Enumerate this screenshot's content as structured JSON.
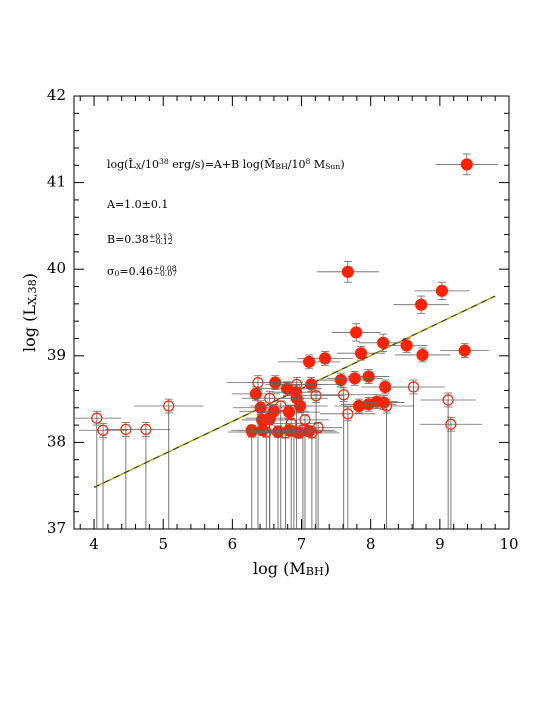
{
  "chart_data": {
    "type": "scatter",
    "xlabel": [
      {
        "text": "log (M",
        "shift": "none"
      },
      {
        "text": "BH",
        "shift": "sub"
      },
      {
        "text": ")",
        "shift": "none"
      }
    ],
    "ylabel": [
      {
        "text": "log (L",
        "shift": "none"
      },
      {
        "text": "X,38",
        "shift": "sub"
      },
      {
        "text": ")",
        "shift": "none"
      }
    ],
    "annotations": [
      [
        {
          "text": "log(L̂",
          "shift": "none"
        },
        {
          "text": "X",
          "shift": "sub"
        },
        {
          "text": "/10",
          "shift": "none"
        },
        {
          "text": "38",
          "shift": "sup"
        },
        {
          "text": " erg/s)=A+B log(M̂",
          "shift": "none"
        },
        {
          "text": "BH",
          "shift": "sub"
        },
        {
          "text": "/10",
          "shift": "none"
        },
        {
          "text": "8",
          "shift": "sup"
        },
        {
          "text": " M",
          "shift": "none"
        },
        {
          "text": "Sun",
          "shift": "sub"
        },
        {
          "text": ")",
          "shift": "none"
        }
      ],
      [
        {
          "text": "A=1.0±0.1",
          "shift": "none"
        }
      ],
      [
        {
          "text": "B=0.38",
          "shift": "none"
        },
        {
          "text": "+0.13",
          "shift": "sup"
        },
        {
          "text": "−0.12",
          "shift": "sub"
        }
      ],
      [
        {
          "text": "σ",
          "shift": "none"
        },
        {
          "text": "0",
          "shift": "sub"
        },
        {
          "text": "=0.46",
          "shift": "none"
        },
        {
          "text": "+0.08",
          "shift": "sup"
        },
        {
          "text": "−0.07",
          "shift": "sub"
        }
      ]
    ],
    "xlim": [
      3.71,
      10
    ],
    "ylim": [
      37,
      42
    ],
    "xticks": [
      4,
      5,
      6,
      7,
      8,
      9,
      10
    ],
    "yticks": [
      37,
      38,
      39,
      40,
      41,
      42
    ],
    "minor_per_major": 5,
    "fit": {
      "color": "#b5a800",
      "x": [
        4.0,
        9.8
      ],
      "values": [
        37.48,
        39.69
      ]
    },
    "series": [
      {
        "marker": "filled",
        "color": "#ff2200",
        "x": [
          9.39,
          7.67,
          9.03,
          8.73,
          7.79,
          8.18,
          8.52,
          7.34,
          7.86,
          8.75,
          9.36,
          7.11,
          7.97,
          7.57,
          7.77,
          8.21,
          8.09,
          7.97,
          7.83,
          8.19,
          7.14,
          6.79,
          6.62,
          6.93,
          6.34,
          6.41,
          6.6,
          6.82,
          6.98,
          6.92,
          6.43,
          6.54,
          6.28,
          6.44,
          6.66,
          6.82,
          6.96,
          7.11
        ],
        "values": [
          41.21,
          39.97,
          39.75,
          39.59,
          39.27,
          39.15,
          39.12,
          38.97,
          39.03,
          39.01,
          39.06,
          38.93,
          38.76,
          38.72,
          38.74,
          38.64,
          38.47,
          38.44,
          38.42,
          38.46,
          38.67,
          38.62,
          38.69,
          38.51,
          38.56,
          38.4,
          38.36,
          38.35,
          38.42,
          38.58,
          38.26,
          38.28,
          38.14,
          38.14,
          38.12,
          38.14,
          38.11,
          38.13
        ],
        "xerr": [
          0.45,
          0.45,
          0.4,
          0.4,
          0.35,
          0.35,
          0.3,
          0.4,
          0.35,
          0.4,
          0.35,
          0.45,
          0.3,
          0.35,
          0.4,
          0.35,
          0.3,
          0.4,
          0.35,
          0.3,
          0.45,
          0.5,
          0.4,
          0.45,
          0.35,
          0.4,
          0.5,
          0.45,
          0.4,
          0.35,
          0.3,
          0.35,
          0.3,
          0.35,
          0.4,
          0.45,
          0.35,
          0.4
        ],
        "yerr": [
          0.12,
          0.12,
          0.1,
          0.1,
          0.1,
          0.1,
          0.08,
          0.08,
          0.08,
          0.08,
          0.08,
          0.08,
          0.08,
          0.08,
          0.08,
          0.08,
          0.08,
          0.08,
          0.08,
          0.08,
          0.08,
          0.08,
          0.08,
          0.08,
          0.08,
          0.08,
          0.08,
          0.08,
          0.08,
          0.08,
          0.08,
          0.08,
          0.06,
          0.06,
          0.06,
          0.06,
          0.06,
          0.06
        ]
      },
      {
        "marker": "open",
        "upper_limit": true,
        "color": "#ff2200",
        "x": [
          4.04,
          4.13,
          4.46,
          4.75,
          5.08,
          6.37,
          6.54,
          6.93,
          7.21,
          7.61,
          7.67,
          8.23,
          8.62,
          9.12,
          9.16,
          6.28,
          6.49,
          6.66,
          6.77,
          6.89,
          7.02,
          7.15,
          7.24,
          6.54,
          6.7,
          6.85,
          7.05
        ],
        "values": [
          38.28,
          38.14,
          38.15,
          38.15,
          38.42,
          38.69,
          38.51,
          38.67,
          38.54,
          38.55,
          38.33,
          38.42,
          38.64,
          38.49,
          38.21,
          38.12,
          38.12,
          38.13,
          38.11,
          38.13,
          38.14,
          38.11,
          38.17,
          38.26,
          38.42,
          38.22,
          38.26
        ],
        "xerr": [
          0.35,
          0.35,
          0.3,
          0.35,
          0.5,
          0.45,
          0.4,
          0.45,
          0.4,
          0.45,
          0.4,
          0.4,
          0.45,
          0.4,
          0.45,
          0.35,
          0.4,
          0.35,
          0.45,
          0.4,
          0.45,
          0.4,
          0.35,
          0.4,
          0.45,
          0.4,
          0.35
        ],
        "yerr": [
          0.08,
          0.08,
          0.08,
          0.08,
          0.08,
          0.08,
          0.08,
          0.08,
          0.08,
          0.08,
          0.08,
          0.08,
          0.08,
          0.08,
          0.08,
          0.06,
          0.06,
          0.06,
          0.06,
          0.06,
          0.06,
          0.06,
          0.06,
          0.06,
          0.06,
          0.06,
          0.06
        ]
      }
    ]
  }
}
